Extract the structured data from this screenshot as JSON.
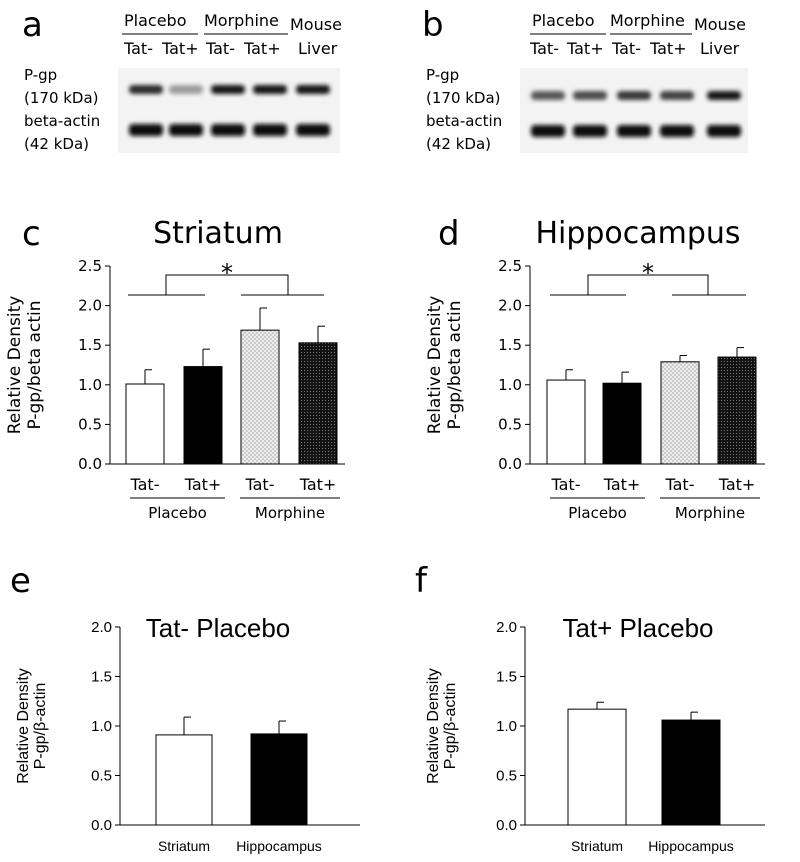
{
  "panels": {
    "a": {
      "letter": "a",
      "groups": [
        "Placebo",
        "Morphine"
      ],
      "lanes": [
        "Tat-",
        "Tat+",
        "Tat-",
        "Tat+"
      ],
      "extra_lane": [
        "Mouse",
        "Liver"
      ],
      "bands": [
        {
          "name": [
            "P-gp",
            "(170 kDa)"
          ],
          "intensity": [
            0.85,
            0.35,
            0.95,
            0.95,
            0.95
          ]
        },
        {
          "name": [
            "beta-actin",
            "(42 kDa)"
          ],
          "intensity": [
            1,
            1,
            1,
            1,
            1
          ]
        }
      ]
    },
    "b": {
      "letter": "b",
      "groups": [
        "Placebo",
        "Morphine"
      ],
      "lanes": [
        "Tat-",
        "Tat+",
        "Tat-",
        "Tat+"
      ],
      "extra_lane": [
        "Mouse",
        "Liver"
      ],
      "bands": [
        {
          "name": [
            "P-gp",
            "(170 kDa)"
          ],
          "intensity": [
            0.65,
            0.7,
            0.8,
            0.75,
            0.95
          ]
        },
        {
          "name": [
            "beta-actin",
            "(42 kDa)"
          ],
          "intensity": [
            1,
            1,
            1,
            1,
            1
          ]
        }
      ]
    },
    "c": {
      "letter": "c"
    },
    "d": {
      "letter": "d"
    },
    "e": {
      "letter": "e"
    },
    "f": {
      "letter": "f"
    }
  },
  "chart_data": [
    {
      "panel": "c",
      "type": "bar",
      "title": "Striatum",
      "ylabel": [
        "Relative Density",
        "P-gp/beta actin"
      ],
      "ylim": [
        0,
        2.5
      ],
      "yticks": [
        "0.0",
        "0.5",
        "1.0",
        "1.5",
        "2.0",
        "2.5"
      ],
      "categories": [
        "Tat-",
        "Tat+",
        "Tat-",
        "Tat+"
      ],
      "groups": [
        "Placebo",
        "Morphine"
      ],
      "values": [
        1.01,
        1.23,
        1.69,
        1.53
      ],
      "errors": [
        0.18,
        0.22,
        0.28,
        0.21
      ],
      "fills": [
        "white",
        "black",
        "dotted-light",
        "dotted-dark"
      ],
      "significance": "*"
    },
    {
      "panel": "d",
      "type": "bar",
      "title": "Hippocampus",
      "ylabel": [
        "Relative Density",
        "P-gp/beta actin"
      ],
      "ylim": [
        0,
        2.5
      ],
      "yticks": [
        "0.0",
        "0.5",
        "1.0",
        "1.5",
        "2.0",
        "2.5"
      ],
      "categories": [
        "Tat-",
        "Tat+",
        "Tat-",
        "Tat+"
      ],
      "groups": [
        "Placebo",
        "Morphine"
      ],
      "values": [
        1.06,
        1.02,
        1.29,
        1.35
      ],
      "errors": [
        0.13,
        0.14,
        0.08,
        0.12
      ],
      "fills": [
        "white",
        "black",
        "dotted-light",
        "dotted-dark"
      ],
      "significance": "*"
    },
    {
      "panel": "e",
      "type": "bar",
      "title": "Tat- Placebo",
      "ylabel": [
        "Relative Density",
        "P-gp/β-actin"
      ],
      "ylim": [
        0,
        2.0
      ],
      "yticks": [
        "0.0",
        "0.5",
        "1.0",
        "1.5",
        "2.0"
      ],
      "categories": [
        "Striatum",
        "Hippocampus"
      ],
      "values": [
        0.91,
        0.92
      ],
      "errors": [
        0.18,
        0.13
      ],
      "fills": [
        "white",
        "black"
      ]
    },
    {
      "panel": "f",
      "type": "bar",
      "title": "Tat+ Placebo",
      "ylabel": [
        "Relative Density",
        "P-gp/β-actin"
      ],
      "ylim": [
        0,
        2.0
      ],
      "yticks": [
        "0.0",
        "0.5",
        "1.0",
        "1.5",
        "2.0"
      ],
      "categories": [
        "Striatum",
        "Hippocampus"
      ],
      "values": [
        1.17,
        1.06
      ],
      "errors": [
        0.07,
        0.08
      ],
      "fills": [
        "white",
        "black"
      ]
    }
  ]
}
